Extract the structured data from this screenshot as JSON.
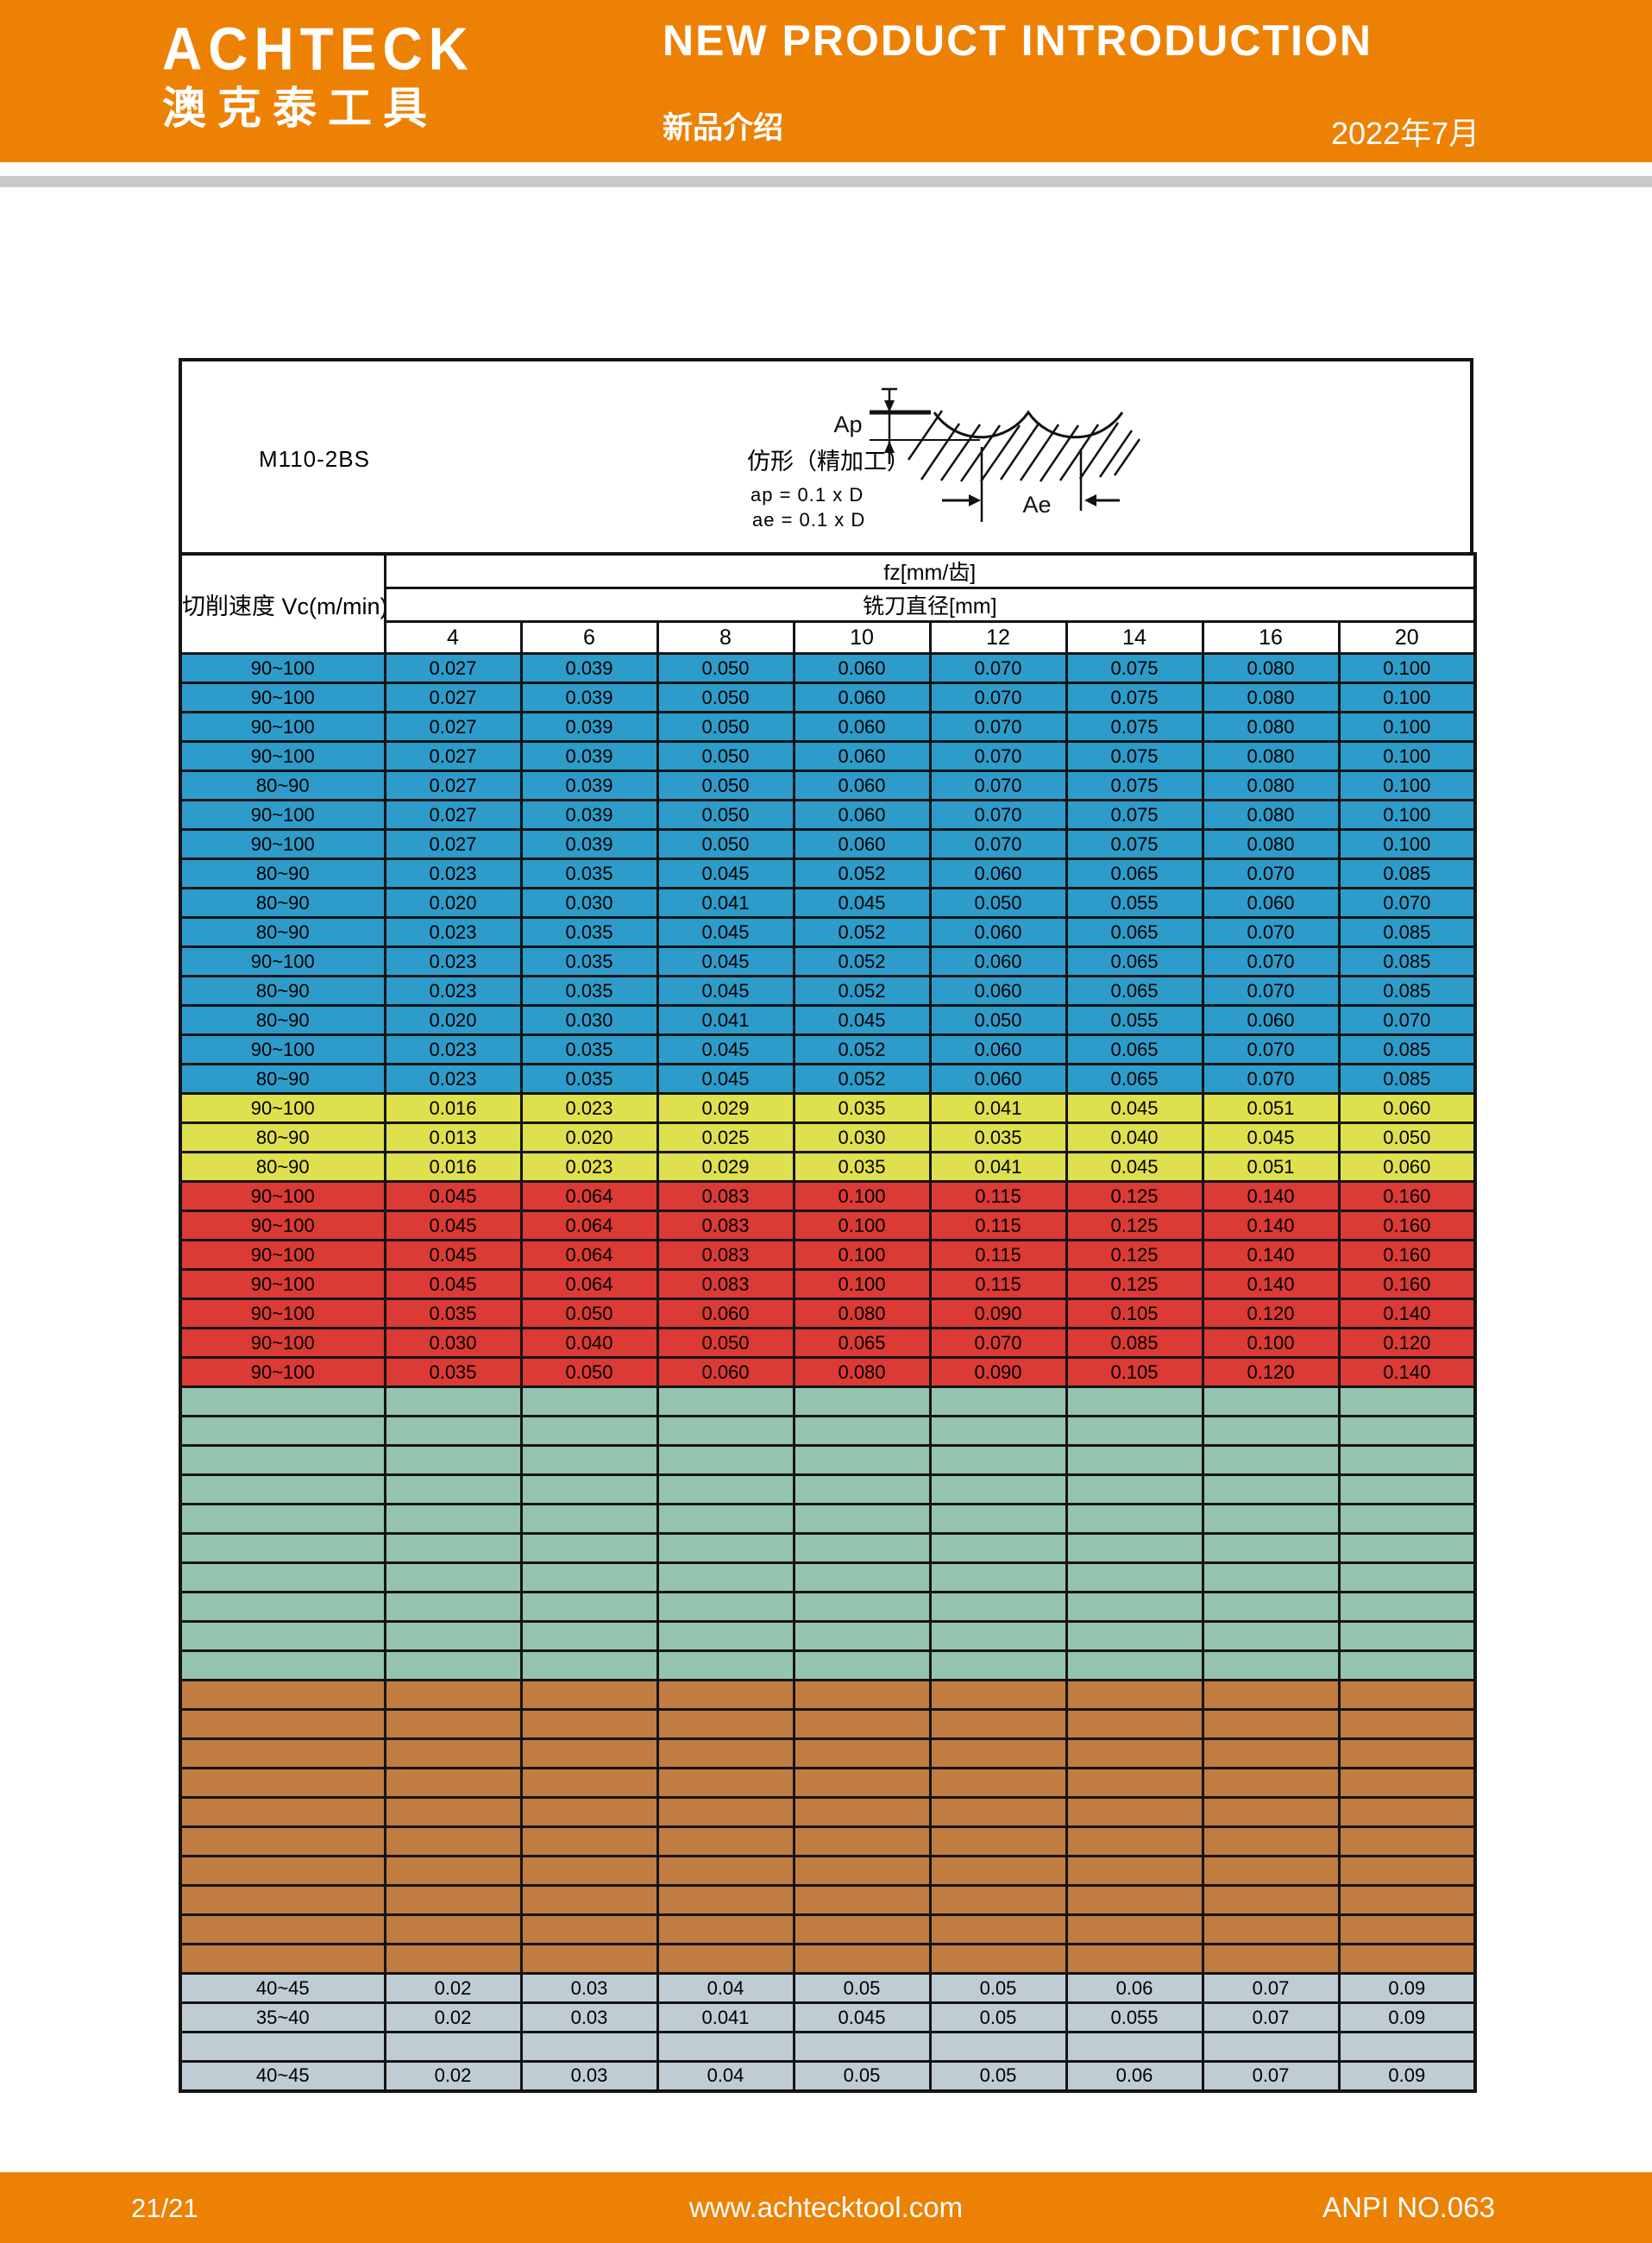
{
  "header": {
    "logo_en": "ACHTECK",
    "logo_cn": "澳克泰工具",
    "title": "NEW PRODUCT INTRODUCTION",
    "subtitle": "新品介绍",
    "date": "2022年7月"
  },
  "info": {
    "model": "M110-2BS",
    "mode_label": "仿形（精加工）",
    "ap_formula": "ap = 0.1 x D",
    "ae_formula": "ae = 0.1 x D",
    "ap_label": "Ap",
    "ae_label": "Ae"
  },
  "table": {
    "speed_header": "切削速度 Vc(m/min)",
    "fz_header": "fz[mm/齿]",
    "diameter_header": "铣刀直径[mm]",
    "diameters": [
      "4",
      "6",
      "8",
      "10",
      "12",
      "14",
      "16",
      "20"
    ],
    "sections": [
      {
        "name": "blue",
        "color": "#2D9CCA",
        "rows": [
          [
            "90~100",
            "0.027",
            "0.039",
            "0.050",
            "0.060",
            "0.070",
            "0.075",
            "0.080",
            "0.100"
          ],
          [
            "90~100",
            "0.027",
            "0.039",
            "0.050",
            "0.060",
            "0.070",
            "0.075",
            "0.080",
            "0.100"
          ],
          [
            "90~100",
            "0.027",
            "0.039",
            "0.050",
            "0.060",
            "0.070",
            "0.075",
            "0.080",
            "0.100"
          ],
          [
            "90~100",
            "0.027",
            "0.039",
            "0.050",
            "0.060",
            "0.070",
            "0.075",
            "0.080",
            "0.100"
          ],
          [
            "80~90",
            "0.027",
            "0.039",
            "0.050",
            "0.060",
            "0.070",
            "0.075",
            "0.080",
            "0.100"
          ],
          [
            "90~100",
            "0.027",
            "0.039",
            "0.050",
            "0.060",
            "0.070",
            "0.075",
            "0.080",
            "0.100"
          ],
          [
            "90~100",
            "0.027",
            "0.039",
            "0.050",
            "0.060",
            "0.070",
            "0.075",
            "0.080",
            "0.100"
          ],
          [
            "80~90",
            "0.023",
            "0.035",
            "0.045",
            "0.052",
            "0.060",
            "0.065",
            "0.070",
            "0.085"
          ],
          [
            "80~90",
            "0.020",
            "0.030",
            "0.041",
            "0.045",
            "0.050",
            "0.055",
            "0.060",
            "0.070"
          ],
          [
            "80~90",
            "0.023",
            "0.035",
            "0.045",
            "0.052",
            "0.060",
            "0.065",
            "0.070",
            "0.085"
          ],
          [
            "90~100",
            "0.023",
            "0.035",
            "0.045",
            "0.052",
            "0.060",
            "0.065",
            "0.070",
            "0.085"
          ],
          [
            "80~90",
            "0.023",
            "0.035",
            "0.045",
            "0.052",
            "0.060",
            "0.065",
            "0.070",
            "0.085"
          ],
          [
            "80~90",
            "0.020",
            "0.030",
            "0.041",
            "0.045",
            "0.050",
            "0.055",
            "0.060",
            "0.070"
          ],
          [
            "90~100",
            "0.023",
            "0.035",
            "0.045",
            "0.052",
            "0.060",
            "0.065",
            "0.070",
            "0.085"
          ],
          [
            "80~90",
            "0.023",
            "0.035",
            "0.045",
            "0.052",
            "0.060",
            "0.065",
            "0.070",
            "0.085"
          ]
        ]
      },
      {
        "name": "yellow",
        "color": "#DFE04D",
        "rows": [
          [
            "90~100",
            "0.016",
            "0.023",
            "0.029",
            "0.035",
            "0.041",
            "0.045",
            "0.051",
            "0.060"
          ],
          [
            "80~90",
            "0.013",
            "0.020",
            "0.025",
            "0.030",
            "0.035",
            "0.040",
            "0.045",
            "0.050"
          ],
          [
            "80~90",
            "0.016",
            "0.023",
            "0.029",
            "0.035",
            "0.041",
            "0.045",
            "0.051",
            "0.060"
          ]
        ]
      },
      {
        "name": "red",
        "color": "#DB3A35",
        "rows": [
          [
            "90~100",
            "0.045",
            "0.064",
            "0.083",
            "0.100",
            "0.115",
            "0.125",
            "0.140",
            "0.160"
          ],
          [
            "90~100",
            "0.045",
            "0.064",
            "0.083",
            "0.100",
            "0.115",
            "0.125",
            "0.140",
            "0.160"
          ],
          [
            "90~100",
            "0.045",
            "0.064",
            "0.083",
            "0.100",
            "0.115",
            "0.125",
            "0.140",
            "0.160"
          ],
          [
            "90~100",
            "0.045",
            "0.064",
            "0.083",
            "0.100",
            "0.115",
            "0.125",
            "0.140",
            "0.160"
          ],
          [
            "90~100",
            "0.035",
            "0.050",
            "0.060",
            "0.080",
            "0.090",
            "0.105",
            "0.120",
            "0.140"
          ],
          [
            "90~100",
            "0.030",
            "0.040",
            "0.050",
            "0.065",
            "0.070",
            "0.085",
            "0.100",
            "0.120"
          ],
          [
            "90~100",
            "0.035",
            "0.050",
            "0.060",
            "0.080",
            "0.090",
            "0.105",
            "0.120",
            "0.140"
          ]
        ]
      },
      {
        "name": "green",
        "color": "#94C3AE",
        "empty_rows": 10
      },
      {
        "name": "brown",
        "color": "#C07C41",
        "empty_rows": 10
      },
      {
        "name": "slate",
        "color": "#C0CCD4",
        "rows": [
          [
            "40~45",
            "0.02",
            "0.03",
            "0.04",
            "0.05",
            "0.05",
            "0.06",
            "0.07",
            "0.09"
          ],
          [
            "35~40",
            "0.02",
            "0.03",
            "0.041",
            "0.045",
            "0.05",
            "0.055",
            "0.07",
            "0.09"
          ],
          [
            "",
            "",
            "",
            "",
            "",
            "",
            "",
            "",
            ""
          ],
          [
            "40~45",
            "0.02",
            "0.03",
            "0.04",
            "0.05",
            "0.05",
            "0.06",
            "0.07",
            "0.09"
          ]
        ]
      }
    ]
  },
  "footer": {
    "page": "21/21",
    "website": "www.achtecktool.com",
    "doc_no": "ANPI NO.063"
  },
  "colors": {
    "accent_orange": "#ED8103",
    "stripe_gray": "#C9C9C9",
    "row_blue": "#2D9CCA",
    "row_yellow": "#DFE04D",
    "row_red": "#DB3A35",
    "row_green": "#94C3AE",
    "row_brown": "#C07C41",
    "row_slate": "#C0CCD4"
  }
}
